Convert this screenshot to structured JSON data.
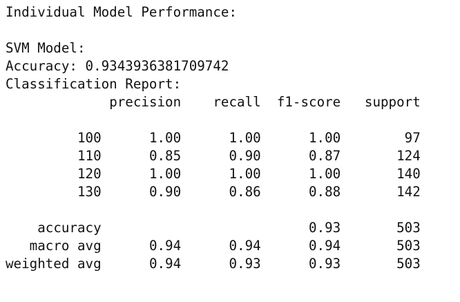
{
  "header": {
    "title": "Individual Model Performance:"
  },
  "model": {
    "name": "SVM Model:",
    "accuracy_label": "Accuracy:",
    "accuracy_value": "0.9343936381709742",
    "report_label": "Classification Report:"
  },
  "report": {
    "columns": [
      "precision",
      "recall",
      "f1-score",
      "support"
    ],
    "rows": [
      {
        "label": "100",
        "precision": "1.00",
        "recall": "1.00",
        "f1": "1.00",
        "support": "97"
      },
      {
        "label": "110",
        "precision": "0.85",
        "recall": "0.90",
        "f1": "0.87",
        "support": "124"
      },
      {
        "label": "120",
        "precision": "1.00",
        "recall": "1.00",
        "f1": "1.00",
        "support": "140"
      },
      {
        "label": "130",
        "precision": "0.90",
        "recall": "0.86",
        "f1": "0.88",
        "support": "142"
      }
    ],
    "summary": [
      {
        "label": "accuracy",
        "precision": "",
        "recall": "",
        "f1": "0.93",
        "support": "503"
      },
      {
        "label": "macro avg",
        "precision": "0.94",
        "recall": "0.94",
        "f1": "0.94",
        "support": "503"
      },
      {
        "label": "weighted avg",
        "precision": "0.94",
        "recall": "0.93",
        "f1": "0.93",
        "support": "503"
      }
    ]
  }
}
